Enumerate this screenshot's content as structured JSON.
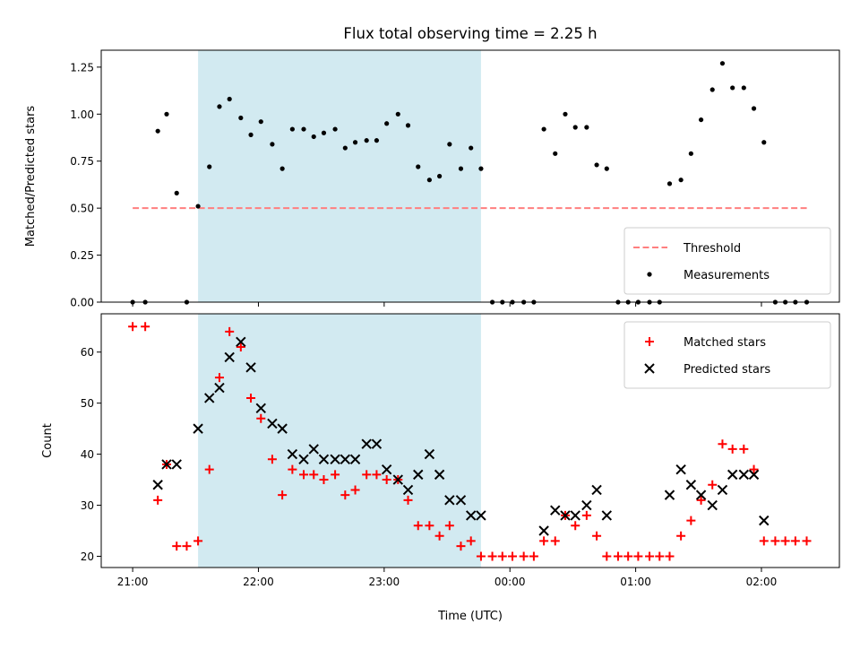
{
  "chart_data": {
    "title": "Flux total observing time = 2.25 h",
    "xlabel": "Time (UTC)",
    "x_tick_labels": [
      "21:00",
      "22:00",
      "23:00",
      "00:00",
      "01:00",
      "02:00"
    ],
    "x_tick_hours": [
      0,
      1,
      2,
      3,
      4,
      5
    ],
    "x_axis_note": "x values are hours after 21:00 UTC",
    "xlim": [
      -0.25,
      5.62
    ],
    "shaded_interval_hours": [
      0.52,
      2.77
    ],
    "shade_color": "#add8e6",
    "panels": [
      {
        "type": "scatter",
        "ylabel": "Matched/Predicted stars",
        "ylim": [
          0,
          1.34
        ],
        "y_ticks": [
          0,
          0.25,
          0.5,
          0.75,
          1.0,
          1.25
        ],
        "y_tick_labels": [
          "0.00",
          "0.25",
          "0.50",
          "0.75",
          "1.00",
          "1.25"
        ],
        "legend_position": "lower-right",
        "threshold": {
          "name": "Threshold",
          "value": 0.5,
          "x_range": [
            0.0,
            5.38
          ],
          "color": "#ff7f7f",
          "style": "dashed"
        },
        "series": [
          {
            "name": "Measurements",
            "color": "#000000",
            "marker": "dot",
            "points": [
              [
                0.0,
                0.0
              ],
              [
                0.1,
                0.0
              ],
              [
                0.2,
                0.91
              ],
              [
                0.27,
                1.0
              ],
              [
                0.35,
                0.58
              ],
              [
                0.43,
                0.0
              ],
              [
                0.52,
                0.51
              ],
              [
                0.61,
                0.72
              ],
              [
                0.69,
                1.04
              ],
              [
                0.77,
                1.08
              ],
              [
                0.86,
                0.98
              ],
              [
                0.94,
                0.89
              ],
              [
                1.02,
                0.96
              ],
              [
                1.11,
                0.84
              ],
              [
                1.19,
                0.71
              ],
              [
                1.27,
                0.92
              ],
              [
                1.36,
                0.92
              ],
              [
                1.44,
                0.88
              ],
              [
                1.52,
                0.9
              ],
              [
                1.61,
                0.92
              ],
              [
                1.69,
                0.82
              ],
              [
                1.77,
                0.85
              ],
              [
                1.86,
                0.86
              ],
              [
                1.94,
                0.86
              ],
              [
                2.02,
                0.95
              ],
              [
                2.11,
                1.0
              ],
              [
                2.19,
                0.94
              ],
              [
                2.27,
                0.72
              ],
              [
                2.36,
                0.65
              ],
              [
                2.44,
                0.67
              ],
              [
                2.52,
                0.84
              ],
              [
                2.61,
                0.71
              ],
              [
                2.69,
                0.82
              ],
              [
                2.77,
                0.71
              ],
              [
                2.86,
                0.0
              ],
              [
                2.94,
                0.0
              ],
              [
                3.02,
                0.0
              ],
              [
                3.11,
                0.0
              ],
              [
                3.19,
                0.0
              ],
              [
                3.27,
                0.92
              ],
              [
                3.36,
                0.79
              ],
              [
                3.44,
                1.0
              ],
              [
                3.52,
                0.93
              ],
              [
                3.61,
                0.93
              ],
              [
                3.69,
                0.73
              ],
              [
                3.77,
                0.71
              ],
              [
                3.86,
                0.0
              ],
              [
                3.94,
                0.0
              ],
              [
                4.02,
                0.0
              ],
              [
                4.11,
                0.0
              ],
              [
                4.19,
                0.0
              ],
              [
                4.27,
                0.63
              ],
              [
                4.36,
                0.65
              ],
              [
                4.44,
                0.79
              ],
              [
                4.52,
                0.97
              ],
              [
                4.61,
                1.13
              ],
              [
                4.69,
                1.27
              ],
              [
                4.77,
                1.14
              ],
              [
                4.86,
                1.14
              ],
              [
                4.94,
                1.03
              ],
              [
                5.02,
                0.85
              ],
              [
                5.11,
                0.0
              ],
              [
                5.19,
                0.0
              ],
              [
                5.27,
                0.0
              ],
              [
                5.36,
                0.0
              ]
            ]
          }
        ]
      },
      {
        "type": "scatter",
        "ylabel": "Count",
        "ylim": [
          17.8,
          67.5
        ],
        "y_ticks": [
          20,
          30,
          40,
          50,
          60
        ],
        "y_tick_labels": [
          "20",
          "30",
          "40",
          "50",
          "60"
        ],
        "legend_position": "upper-right",
        "series": [
          {
            "name": "Matched stars",
            "color": "#ff0000",
            "marker": "plus",
            "points": [
              [
                0.0,
                65
              ],
              [
                0.1,
                65
              ],
              [
                0.2,
                31
              ],
              [
                0.27,
                38
              ],
              [
                0.35,
                22
              ],
              [
                0.43,
                22
              ],
              [
                0.52,
                23
              ],
              [
                0.61,
                37
              ],
              [
                0.69,
                55
              ],
              [
                0.77,
                64
              ],
              [
                0.86,
                61
              ],
              [
                0.94,
                51
              ],
              [
                1.02,
                47
              ],
              [
                1.11,
                39
              ],
              [
                1.19,
                32
              ],
              [
                1.27,
                37
              ],
              [
                1.36,
                36
              ],
              [
                1.44,
                36
              ],
              [
                1.52,
                35
              ],
              [
                1.61,
                36
              ],
              [
                1.69,
                32
              ],
              [
                1.77,
                33
              ],
              [
                1.86,
                36
              ],
              [
                1.94,
                36
              ],
              [
                2.02,
                35
              ],
              [
                2.11,
                35
              ],
              [
                2.19,
                31
              ],
              [
                2.27,
                26
              ],
              [
                2.36,
                26
              ],
              [
                2.44,
                24
              ],
              [
                2.52,
                26
              ],
              [
                2.61,
                22
              ],
              [
                2.69,
                23
              ],
              [
                2.77,
                20
              ],
              [
                2.86,
                20
              ],
              [
                2.94,
                20
              ],
              [
                3.02,
                20
              ],
              [
                3.11,
                20
              ],
              [
                3.19,
                20
              ],
              [
                3.27,
                23
              ],
              [
                3.36,
                23
              ],
              [
                3.44,
                28
              ],
              [
                3.52,
                26
              ],
              [
                3.61,
                28
              ],
              [
                3.69,
                24
              ],
              [
                3.77,
                20
              ],
              [
                3.86,
                20
              ],
              [
                3.94,
                20
              ],
              [
                4.02,
                20
              ],
              [
                4.11,
                20
              ],
              [
                4.19,
                20
              ],
              [
                4.27,
                20
              ],
              [
                4.36,
                24
              ],
              [
                4.44,
                27
              ],
              [
                4.52,
                31
              ],
              [
                4.61,
                34
              ],
              [
                4.69,
                42
              ],
              [
                4.77,
                41
              ],
              [
                4.86,
                41
              ],
              [
                4.94,
                37
              ],
              [
                5.02,
                23
              ],
              [
                5.11,
                23
              ],
              [
                5.19,
                23
              ],
              [
                5.27,
                23
              ],
              [
                5.36,
                23
              ]
            ]
          },
          {
            "name": "Predicted stars",
            "color": "#000000",
            "marker": "x",
            "points": [
              [
                0.2,
                34
              ],
              [
                0.27,
                38
              ],
              [
                0.35,
                38
              ],
              [
                0.52,
                45
              ],
              [
                0.61,
                51
              ],
              [
                0.69,
                53
              ],
              [
                0.77,
                59
              ],
              [
                0.86,
                62
              ],
              [
                0.94,
                57
              ],
              [
                1.02,
                49
              ],
              [
                1.11,
                46
              ],
              [
                1.19,
                45
              ],
              [
                1.27,
                40
              ],
              [
                1.36,
                39
              ],
              [
                1.44,
                41
              ],
              [
                1.52,
                39
              ],
              [
                1.61,
                39
              ],
              [
                1.69,
                39
              ],
              [
                1.77,
                39
              ],
              [
                1.86,
                42
              ],
              [
                1.94,
                42
              ],
              [
                2.02,
                37
              ],
              [
                2.11,
                35
              ],
              [
                2.19,
                33
              ],
              [
                2.27,
                36
              ],
              [
                2.36,
                40
              ],
              [
                2.44,
                36
              ],
              [
                2.52,
                31
              ],
              [
                2.61,
                31
              ],
              [
                2.69,
                28
              ],
              [
                2.77,
                28
              ],
              [
                3.27,
                25
              ],
              [
                3.36,
                29
              ],
              [
                3.44,
                28
              ],
              [
                3.52,
                28
              ],
              [
                3.61,
                30
              ],
              [
                3.69,
                33
              ],
              [
                3.77,
                28
              ],
              [
                4.27,
                32
              ],
              [
                4.36,
                37
              ],
              [
                4.44,
                34
              ],
              [
                4.52,
                32
              ],
              [
                4.61,
                30
              ],
              [
                4.69,
                33
              ],
              [
                4.77,
                36
              ],
              [
                4.86,
                36
              ],
              [
                4.94,
                36
              ],
              [
                5.02,
                27
              ]
            ]
          }
        ]
      }
    ]
  }
}
